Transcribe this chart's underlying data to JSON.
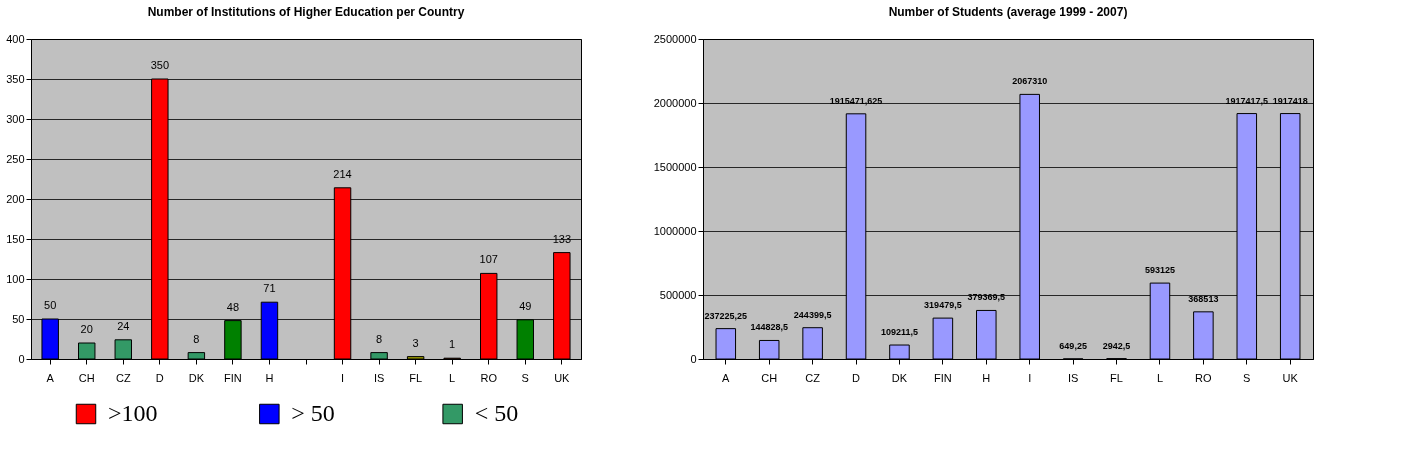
{
  "chart_data": [
    {
      "type": "bar",
      "title": "Number of Institutions of Higher Education per Country",
      "categories": [
        "A",
        "CH",
        "CZ",
        "D",
        "DK",
        "FIN",
        "H",
        null,
        "I",
        "IS",
        "FL",
        "L",
        "RO",
        "S",
        "UK"
      ],
      "ylim": [
        0,
        400
      ],
      "yticks": [
        0,
        50,
        100,
        150,
        200,
        250,
        300,
        350,
        400
      ],
      "grid": "y",
      "legend": "bottom",
      "data_labels": true,
      "series": [
        {
          "name": ">100",
          "color": "#ff0000",
          "values": [
            null,
            null,
            null,
            350,
            null,
            null,
            null,
            null,
            214,
            null,
            null,
            null,
            107,
            null,
            133
          ]
        },
        {
          "name": "> 50",
          "color": "#0000ff",
          "values": [
            50,
            null,
            null,
            null,
            null,
            null,
            71,
            null,
            null,
            null,
            null,
            null,
            null,
            null,
            null
          ]
        },
        {
          "name": "< 50",
          "color": "#339966",
          "colors": [
            null,
            "#339966",
            "#339966",
            null,
            "#339966",
            "#008000",
            null,
            null,
            null,
            "#339966",
            "#999900",
            "#993300",
            null,
            "#008000",
            null
          ],
          "values": [
            null,
            20,
            24,
            null,
            8,
            48,
            null,
            null,
            null,
            8,
            3,
            1,
            null,
            49,
            null
          ]
        }
      ]
    },
    {
      "type": "bar",
      "title": "Number of Students (average 1999 - 2007)",
      "categories": [
        "A",
        "CH",
        "CZ",
        "D",
        "DK",
        "FIN",
        "H",
        "I",
        "IS",
        "FL",
        "L",
        "RO",
        "S",
        "UK"
      ],
      "ylim": [
        0,
        2500000
      ],
      "yticks": [
        0,
        500000,
        1000000,
        1500000,
        2000000,
        2500000
      ],
      "grid": "y",
      "series": [
        {
          "color": "#9999ff",
          "values": [
            237225.25,
            144828.5,
            244399.5,
            1915471.625,
            109211.5,
            319479.5,
            379369.5,
            2067310,
            649.25,
            2942.5,
            593125,
            368513,
            1917417.5,
            1917418
          ],
          "value_labels": [
            "237225,25",
            "144828,5",
            "244399,5",
            "1915471,625",
            "109211,5",
            "319479,5",
            "379369,5",
            "2067310",
            "649,25",
            "2942,5",
            "593125",
            "368513",
            "1917417,5",
            "1917418"
          ]
        }
      ]
    }
  ]
}
